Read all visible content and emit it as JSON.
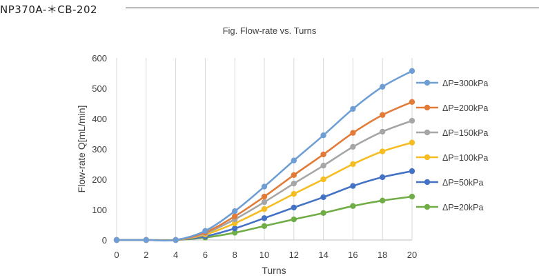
{
  "document": {
    "header": "NP370A-＊CB-202"
  },
  "chart_data": {
    "type": "line",
    "title": "Fig. Flow-rate vs. Turns",
    "xlabel": "Turns",
    "ylabel": "Flow-rate Q[mL/min]",
    "x": [
      0,
      2,
      4,
      6,
      8,
      10,
      12,
      14,
      16,
      18,
      20
    ],
    "xlim": [
      0,
      20
    ],
    "ylim": [
      0,
      600
    ],
    "xticks": [
      0,
      2,
      4,
      6,
      8,
      10,
      12,
      14,
      16,
      18,
      20
    ],
    "yticks": [
      0,
      100,
      200,
      300,
      400,
      500,
      600
    ],
    "grid": "vertical",
    "legend_position": "right",
    "series": [
      {
        "name": "ΔP=300kPa",
        "color": "#6f9ed4",
        "values": [
          0,
          0,
          0,
          30,
          95,
          176,
          262,
          345,
          432,
          505,
          557
        ]
      },
      {
        "name": "ΔP=200kPa",
        "color": "#e27a38",
        "values": [
          0,
          0,
          0,
          25,
          78,
          143,
          214,
          282,
          353,
          412,
          455
        ]
      },
      {
        "name": "ΔP=150kPa",
        "color": "#a6a6a6",
        "values": [
          0,
          0,
          0,
          22,
          68,
          125,
          186,
          245,
          307,
          357,
          393
        ]
      },
      {
        "name": "ΔP=100kPa",
        "color": "#f6bd22",
        "values": [
          0,
          0,
          0,
          18,
          55,
          102,
          152,
          200,
          250,
          292,
          321
        ]
      },
      {
        "name": "ΔP=50kPa",
        "color": "#4472c4",
        "values": [
          0,
          0,
          0,
          12,
          38,
          72,
          107,
          141,
          178,
          207,
          227
        ]
      },
      {
        "name": "ΔP=20kPa",
        "color": "#71ad47",
        "values": [
          0,
          0,
          0,
          8,
          24,
          46,
          68,
          89,
          112,
          130,
          143
        ]
      }
    ]
  }
}
